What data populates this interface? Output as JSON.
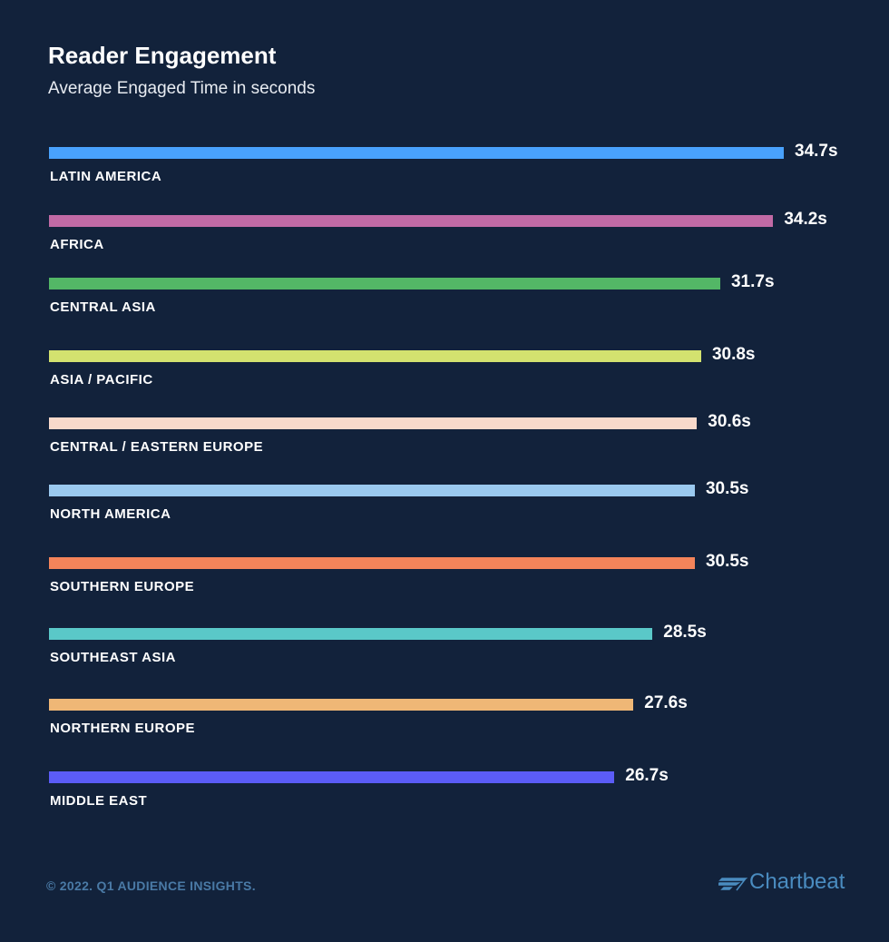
{
  "header": {
    "title": "Reader Engagement",
    "subtitle": "Average Engaged Time in seconds"
  },
  "footer": {
    "copyright": "© 2022. Q1 AUDIENCE INSIGHTS.",
    "brand": "Chartbeat",
    "brand_color": "#4a8cc0"
  },
  "chart_data": {
    "type": "bar",
    "orientation": "horizontal",
    "title": "Reader Engagement",
    "subtitle": "Average Engaged Time in seconds",
    "xlabel": "",
    "ylabel": "",
    "unit_suffix": "s",
    "xlim": [
      0,
      34.7
    ],
    "grid": false,
    "legend": "none",
    "categories": [
      "LATIN AMERICA",
      "AFRICA",
      "CENTRAL ASIA",
      "ASIA / PACIFIC",
      "CENTRAL / EASTERN EUROPE",
      "NORTH AMERICA",
      "SOUTHERN EUROPE",
      "SOUTHEAST ASIA",
      "NORTHERN EUROPE",
      "MIDDLE EAST"
    ],
    "values": [
      34.7,
      34.2,
      31.7,
      30.8,
      30.6,
      30.5,
      30.5,
      28.5,
      27.6,
      26.7
    ],
    "value_labels": [
      "34.7s",
      "34.2s",
      "31.7s",
      "30.8s",
      "30.6s",
      "30.5s",
      "30.5s",
      "28.5s",
      "27.6s",
      "26.7s"
    ],
    "colors": [
      "#49a2fd",
      "#c16aa5",
      "#53b766",
      "#d3e26f",
      "#f8d9cb",
      "#9ac9ef",
      "#f4845a",
      "#5ac8c8",
      "#efb776",
      "#5b5cf7"
    ]
  }
}
